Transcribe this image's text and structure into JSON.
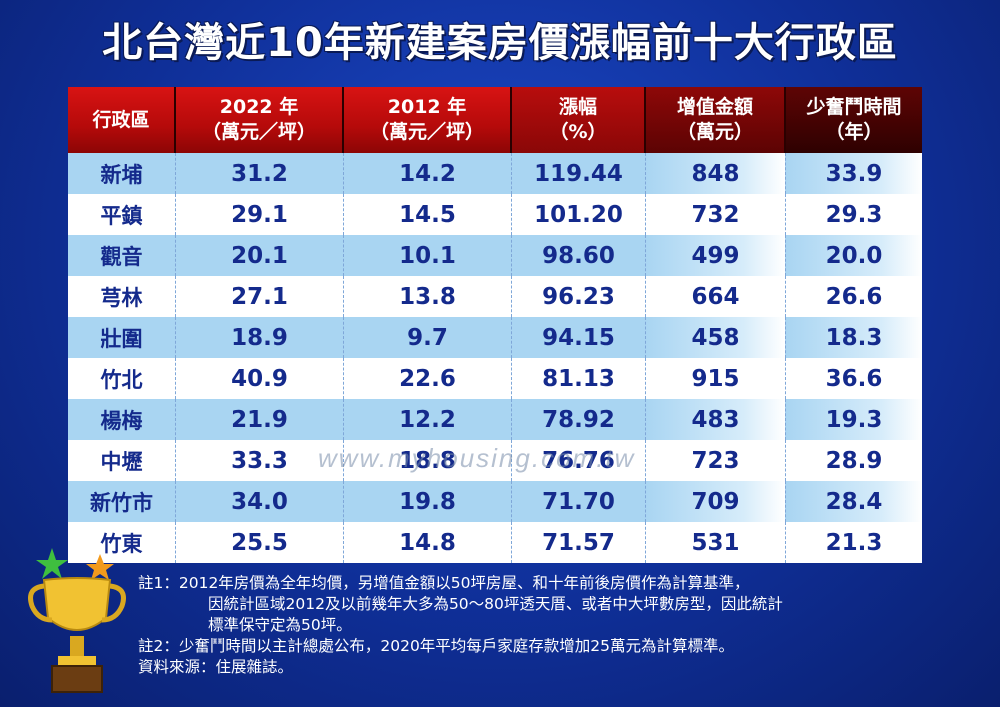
{
  "title": "北台灣近10年新建案房價漲幅前十大行政區",
  "headers": [
    {
      "line1": "行政區",
      "line2": ""
    },
    {
      "line1": "2022 年",
      "line2": "（萬元／坪）"
    },
    {
      "line1": "2012 年",
      "line2": "（萬元／坪）"
    },
    {
      "line1": "漲幅",
      "line2": "（%）"
    },
    {
      "line1": "增值金額",
      "line2": "（萬元）"
    },
    {
      "line1": "少奮鬥時間",
      "line2": "（年）"
    }
  ],
  "rows": [
    [
      "新埔",
      "31.2",
      "14.2",
      "119.44",
      "848",
      "33.9"
    ],
    [
      "平鎮",
      "29.1",
      "14.5",
      "101.20",
      "732",
      "29.3"
    ],
    [
      "觀音",
      "20.1",
      "10.1",
      "98.60",
      "499",
      "20.0"
    ],
    [
      "芎林",
      "27.1",
      "13.8",
      "96.23",
      "664",
      "26.6"
    ],
    [
      "壯圍",
      "18.9",
      "9.7",
      "94.15",
      "458",
      "18.3"
    ],
    [
      "竹北",
      "40.9",
      "22.6",
      "81.13",
      "915",
      "36.6"
    ],
    [
      "楊梅",
      "21.9",
      "12.2",
      "78.92",
      "483",
      "19.3"
    ],
    [
      "中壢",
      "33.3",
      "18.8",
      "76.76",
      "723",
      "28.9"
    ],
    [
      "新竹市",
      "34.0",
      "19.8",
      "71.70",
      "709",
      "28.4"
    ],
    [
      "竹東",
      "25.5",
      "14.8",
      "71.57",
      "531",
      "21.3"
    ]
  ],
  "notes": {
    "n1_a": "註1：2012年房價為全年均價，另增值金額以50坪房屋、和十年前後房價作為計算基準，",
    "n1_b": "因統計區域2012及以前幾年大多為50～80坪透天厝、或者中大坪數房型，因此統計",
    "n1_c": "標準保守定為50坪。",
    "n2": "註2：少奮鬥時間以主計總處公布，2020年平均每戶家庭存款增加25萬元為計算標準。",
    "source": "資料來源：住展雜誌。"
  },
  "watermark": "www.myhousing.com.tw",
  "icons": {
    "trophy": "trophy-icon"
  },
  "colors": {
    "header_red": "#c40f0f",
    "row_blue": "#a9d5f2",
    "text_navy": "#142a8c",
    "bg_blue": "#1640b8"
  }
}
